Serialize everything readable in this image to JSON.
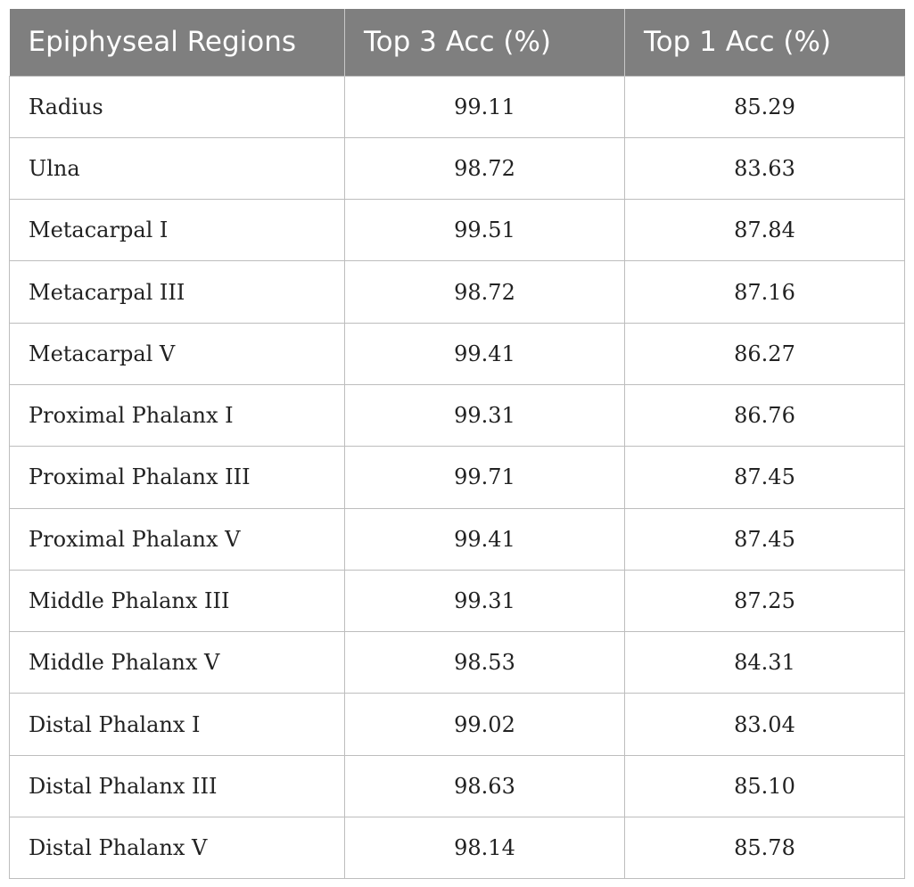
{
  "table": {
    "headers": [
      "Epiphyseal Regions",
      "Top 3 Acc (%)",
      "Top 1 Acc (%)"
    ],
    "rows": [
      [
        "Radius",
        "99.11",
        "85.29"
      ],
      [
        "Ulna",
        "98.72",
        "83.63"
      ],
      [
        "Metacarpal I",
        "99.51",
        "87.84"
      ],
      [
        "Metacarpal III",
        "98.72",
        "87.16"
      ],
      [
        "Metacarpal V",
        "99.41",
        "86.27"
      ],
      [
        "Proximal Phalanx I",
        "99.31",
        "86.76"
      ],
      [
        "Proximal Phalanx III",
        "99.71",
        "87.45"
      ],
      [
        "Proximal Phalanx V",
        "99.41",
        "87.45"
      ],
      [
        "Middle Phalanx III",
        "99.31",
        "87.25"
      ],
      [
        "Middle Phalanx V",
        "98.53",
        "84.31"
      ],
      [
        "Distal Phalanx I",
        "99.02",
        "83.04"
      ],
      [
        "Distal Phalanx III",
        "98.63",
        "85.10"
      ],
      [
        "Distal Phalanx V",
        "98.14",
        "85.78"
      ]
    ]
  }
}
